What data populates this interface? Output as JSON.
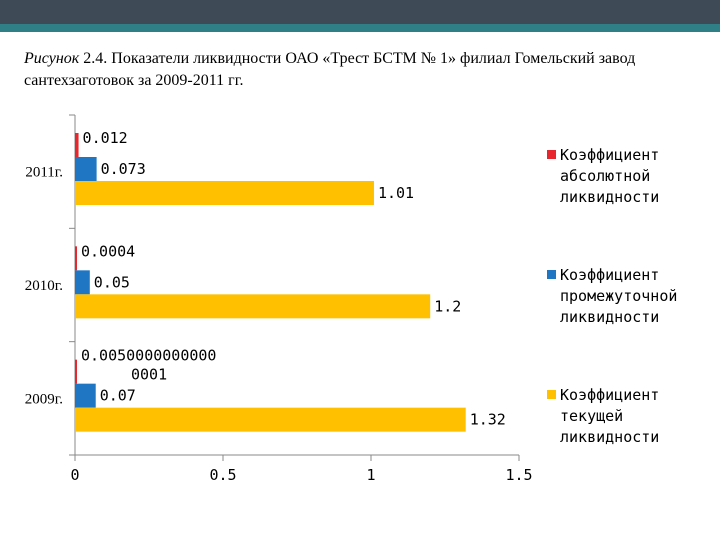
{
  "caption": {
    "italic": "Рисунок",
    "text": " 2.4. Показатели ликвидности ОАО «Трест БСТМ № 1» филиал Гомельский завод сантехзаготовок за 2009-2011 гг."
  },
  "chart_data": {
    "type": "bar",
    "orientation": "horizontal",
    "categories": [
      "2009г.",
      "2010г.",
      "2011г."
    ],
    "series": [
      {
        "name": "Коэффициент абсолютной ликвидности",
        "color": "#e8262d",
        "values": [
          0.005,
          0.0004,
          0.012
        ],
        "labels": [
          "0.0050000000000 0001",
          "0.0004",
          "0.012"
        ]
      },
      {
        "name": "Коэффициент промежуточной ликвидности",
        "color": "#1f77c4",
        "values": [
          0.07,
          0.05,
          0.073
        ],
        "labels": [
          "0.07",
          "0.05",
          "0.073"
        ]
      },
      {
        "name": "Коэффициент текущей ликвидности",
        "color": "#ffc000",
        "values": [
          1.32,
          1.2,
          1.01
        ],
        "labels": [
          "1.32",
          "1.2",
          "1.01"
        ]
      }
    ],
    "xlim": [
      0,
      1.5
    ],
    "xticks": [
      "0",
      "0.5",
      "1",
      "1.5"
    ],
    "legend_position": "right",
    "grid": false
  }
}
